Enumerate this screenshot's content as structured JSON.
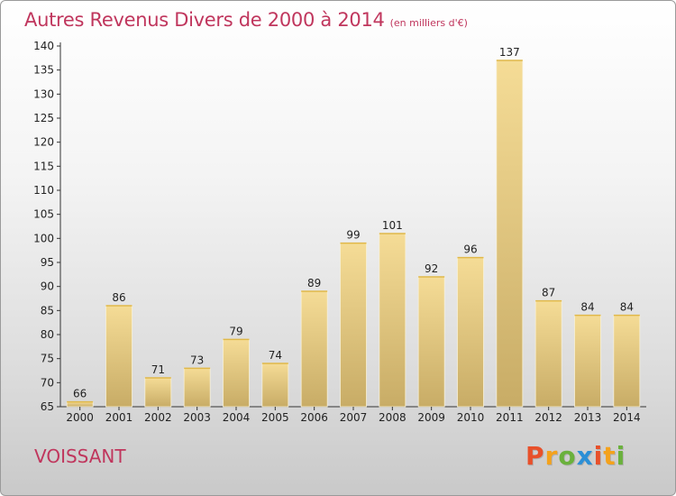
{
  "header": {
    "title": "Autres Revenus Divers de 2000 à 2014",
    "subtitle": "(en milliers d'€)"
  },
  "footer": {
    "commune": "VOISSANT",
    "logo": [
      "P",
      "r",
      "o",
      "x",
      "i",
      "t",
      "i"
    ]
  },
  "colors": {
    "title": "#c0365d",
    "bar_light": "#f5dc96",
    "bar_dark": "#c8ac66",
    "logo": [
      "#e8502a",
      "#f4a21c",
      "#6ab13c",
      "#2b8fd6",
      "#e8502a",
      "#f4a21c",
      "#6ab13c"
    ]
  },
  "chart_data": {
    "type": "bar",
    "title": "Autres Revenus Divers de 2000 à 2014",
    "categories": [
      "2000",
      "2001",
      "2002",
      "2003",
      "2004",
      "2005",
      "2006",
      "2007",
      "2008",
      "2009",
      "2010",
      "2011",
      "2012",
      "2013",
      "2014"
    ],
    "values": [
      66,
      86,
      71,
      73,
      79,
      74,
      89,
      99,
      101,
      92,
      96,
      137,
      87,
      84,
      84
    ],
    "xlabel": "",
    "ylabel": "",
    "ylim": [
      65,
      140
    ],
    "yticks": [
      65,
      70,
      75,
      80,
      85,
      90,
      95,
      100,
      105,
      110,
      115,
      120,
      125,
      130,
      135,
      140
    ],
    "grid": false,
    "legend": "none"
  }
}
